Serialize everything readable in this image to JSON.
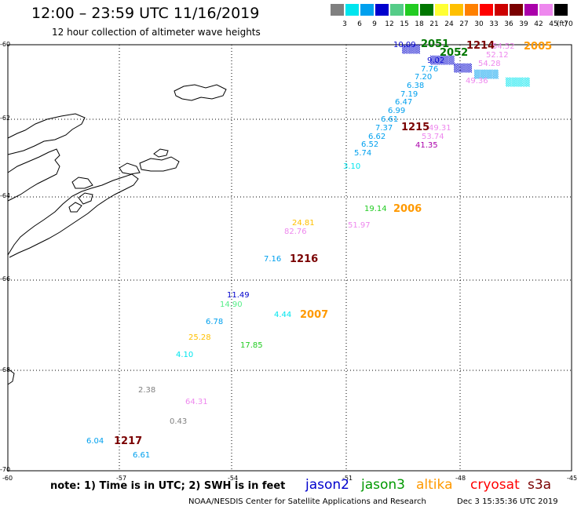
{
  "header": {
    "title": "12:00 – 23:59 UTC 11/16/2019",
    "subtitle": "12 hour collection of altimeter wave heights"
  },
  "scale": {
    "ticks": [
      "3",
      "6",
      "9",
      "12",
      "15",
      "18",
      "21",
      "24",
      "27",
      "30",
      "33",
      "36",
      "39",
      "42",
      "45",
      "70"
    ],
    "unit": "(ft)",
    "colors": [
      "#808080",
      "#00e5ee",
      "#00a0ee",
      "#0000cd",
      "#55cc88",
      "#22cc22",
      "#007700",
      "#ffff33",
      "#ffc000",
      "#ff8000",
      "#ff0000",
      "#cc0000",
      "#7a0000",
      "#aa00aa",
      "#ee88ee",
      "#000000"
    ]
  },
  "axes": {
    "x_labels": [
      "-60",
      "-57",
      "-54",
      "-51",
      "-48",
      "-45"
    ],
    "y_labels": [
      "-60",
      "-62",
      "-64",
      "-66",
      "-68",
      "-70"
    ]
  },
  "times": [
    {
      "text": "1214",
      "color": "#7a0000"
    },
    {
      "text": "2005",
      "color": "#ff9900"
    },
    {
      "text": "2051",
      "color": "#007700"
    },
    {
      "text": "2052",
      "color": "#007700"
    },
    {
      "text": "2006",
      "color": "#ff9900"
    },
    {
      "text": "1215",
      "color": "#7a0000"
    },
    {
      "text": "1216",
      "color": "#7a0000"
    },
    {
      "text": "2007",
      "color": "#ff9900"
    },
    {
      "text": "1217",
      "color": "#7a0000"
    }
  ],
  "readings": [
    {
      "text": "10.09",
      "color": "#0000cd"
    },
    {
      "text": "54.52",
      "color": "#ee88ee"
    },
    {
      "text": "52.12",
      "color": "#ee88ee"
    },
    {
      "text": "9.02",
      "color": "#0000cd"
    },
    {
      "text": "54.28",
      "color": "#ee88ee"
    },
    {
      "text": "7.76",
      "color": "#00a0ee"
    },
    {
      "text": "7.20",
      "color": "#00a0ee"
    },
    {
      "text": "49.36",
      "color": "#ee88ee"
    },
    {
      "text": "6.38",
      "color": "#00a0ee"
    },
    {
      "text": "7.19",
      "color": "#00a0ee"
    },
    {
      "text": "6.47",
      "color": "#00a0ee"
    },
    {
      "text": "6.99",
      "color": "#00a0ee"
    },
    {
      "text": "6.61",
      "color": "#00a0ee"
    },
    {
      "text": "7.37",
      "color": "#00a0ee"
    },
    {
      "text": "49.31",
      "color": "#ee88ee"
    },
    {
      "text": "6.62",
      "color": "#00a0ee"
    },
    {
      "text": "53.74",
      "color": "#ee88ee"
    },
    {
      "text": "6.52",
      "color": "#00a0ee"
    },
    {
      "text": "41.35",
      "color": "#aa00aa"
    },
    {
      "text": "5.74",
      "color": "#00a0ee"
    },
    {
      "text": "3.10",
      "color": "#00e5ee"
    },
    {
      "text": "19.14",
      "color": "#22cc22"
    },
    {
      "text": "24.81",
      "color": "#ffc000"
    },
    {
      "text": "82.76",
      "color": "#ee88ee"
    },
    {
      "text": "51.97",
      "color": "#ee88ee"
    },
    {
      "text": "7.16",
      "color": "#00a0ee"
    },
    {
      "text": "11.49",
      "color": "#0000cd"
    },
    {
      "text": "14.90",
      "color": "#55ee88"
    },
    {
      "text": "4.44",
      "color": "#00e5ee"
    },
    {
      "text": "6.78",
      "color": "#00a0ee"
    },
    {
      "text": "25.28",
      "color": "#ffc000"
    },
    {
      "text": "17.85",
      "color": "#22cc22"
    },
    {
      "text": "4.10",
      "color": "#00e5ee"
    },
    {
      "text": "2.38",
      "color": "#808080"
    },
    {
      "text": "64.31",
      "color": "#ee88ee"
    },
    {
      "text": "0.43",
      "color": "#808080"
    },
    {
      "text": "6.04",
      "color": "#00a0ee"
    },
    {
      "text": "6.61",
      "color": "#00a0ee"
    }
  ],
  "legend": {
    "note": "note: 1) Time is in UTC; 2) SWH is in feet",
    "satellites": [
      {
        "name": "jason2",
        "color": "#0000cd"
      },
      {
        "name": "jason3",
        "color": "#009900"
      },
      {
        "name": "altika",
        "color": "#ff9900"
      },
      {
        "name": "cryosat",
        "color": "#ff0000"
      },
      {
        "name": "s3a",
        "color": "#7a0000"
      }
    ],
    "credit": "NOAA/NESDIS Center for Satellite Applications and Research",
    "timestamp": "Dec  3 15:35:36 UTC 2019"
  }
}
